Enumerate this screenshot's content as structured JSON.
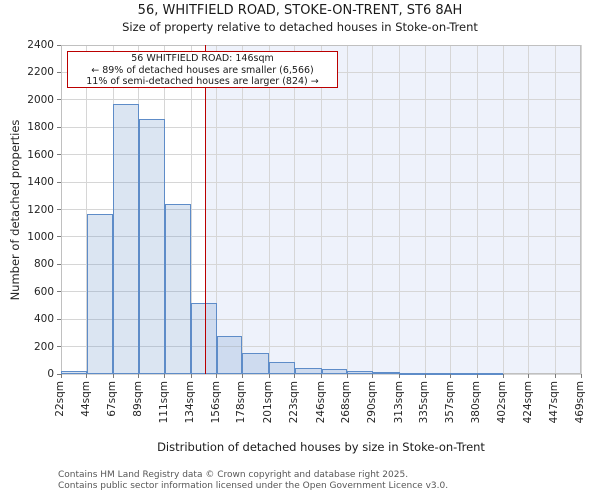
{
  "figure": {
    "title": "56, WHITFIELD ROAD, STOKE-ON-TRENT, ST6 8AH",
    "subtitle": "Size of property relative to detached houses in Stoke-on-Trent"
  },
  "annotation_box": {
    "line1": "56 WHITFIELD ROAD: 146sqm",
    "line2": "← 89% of detached houses are smaller (6,566)",
    "line3": "11% of semi-detached houses are larger (824) →",
    "border_color": "#bb0000"
  },
  "chart_data": {
    "type": "bar",
    "title": "Size of property relative to detached houses in Stoke-on-Trent",
    "xlabel": "Distribution of detached houses by size in Stoke-on-Trent",
    "ylabel": "Number of detached properties",
    "ylim": [
      0,
      2400
    ],
    "y_ticks": [
      0,
      200,
      400,
      600,
      800,
      1000,
      1200,
      1400,
      1600,
      1800,
      2000,
      2200,
      2400
    ],
    "x_tick_labels": [
      "22sqm",
      "44sqm",
      "67sqm",
      "89sqm",
      "111sqm",
      "134sqm",
      "156sqm",
      "178sqm",
      "201sqm",
      "223sqm",
      "246sqm",
      "268sqm",
      "290sqm",
      "313sqm",
      "335sqm",
      "357sqm",
      "380sqm",
      "402sqm",
      "424sqm",
      "447sqm",
      "469sqm"
    ],
    "bin_edges_sqm": [
      22,
      44,
      67,
      89,
      111,
      134,
      156,
      178,
      201,
      223,
      246,
      268,
      290,
      313,
      335,
      357,
      380,
      402,
      424,
      447,
      469
    ],
    "values": [
      25,
      1170,
      1970,
      1860,
      1240,
      520,
      275,
      150,
      85,
      45,
      40,
      20,
      12,
      6,
      6,
      6,
      6,
      0,
      0,
      0
    ],
    "marker_sqm": 146,
    "grid": true,
    "legend": "none",
    "colors": {
      "bar_fill": "rgba(110,150,205,0.25)",
      "bar_border": "#5e8cc8",
      "marker_line": "#bb0000",
      "shade_right_of_marker": "#eef2fb",
      "gridline": "#d6d6d6",
      "spine": "#c0c0c0"
    }
  },
  "footer": {
    "line1": "Contains HM Land Registry data © Crown copyright and database right 2025.",
    "line2": "Contains public sector information licensed under the Open Government Licence v3.0."
  }
}
